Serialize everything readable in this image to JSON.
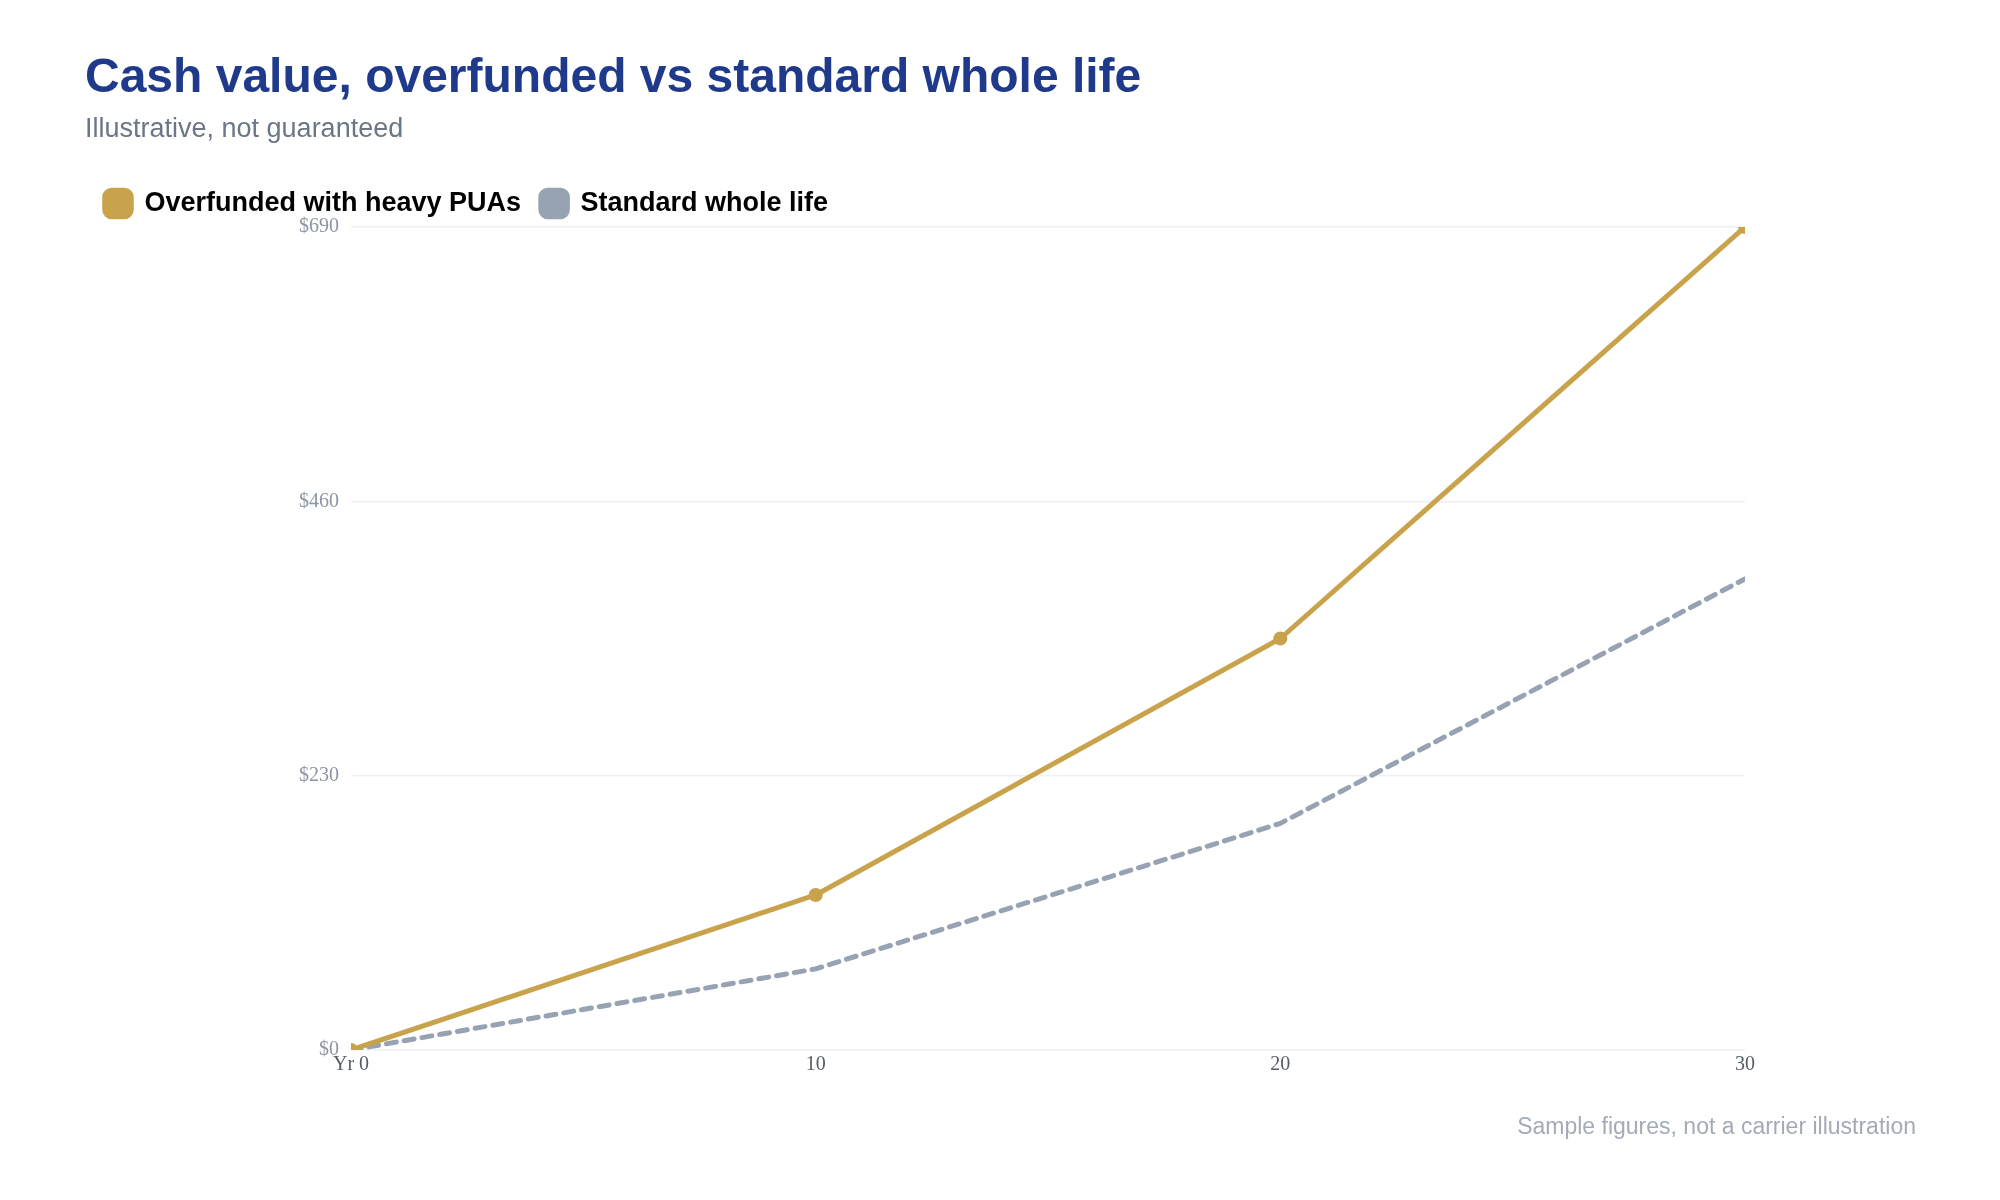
{
  "chart_data": {
    "type": "line",
    "title": "Cash value, overfunded vs standard whole life",
    "subtitle": "Illustrative, not guaranteed",
    "x": [
      0,
      10,
      20,
      30
    ],
    "xlim": [
      0,
      30
    ],
    "xticks": [
      {
        "value": 0,
        "label": "Yr 0"
      },
      10,
      20,
      30
    ],
    "ylim": [
      0,
      690
    ],
    "yticks": [
      {
        "value": 0,
        "label": "$0"
      },
      {
        "value": 230,
        "label": "$230"
      },
      {
        "value": 460,
        "label": "$460"
      },
      {
        "value": 690,
        "label": "$690"
      }
    ],
    "series": [
      {
        "name": "Overfunded with heavy PUAs",
        "color": "#c9a24c",
        "values": [
          0,
          130,
          345,
          690
        ],
        "marker": "circle",
        "line_style": "solid"
      },
      {
        "name": "Standard whole life",
        "color": "#97a2b3",
        "values": [
          0,
          68,
          190,
          395
        ],
        "marker": "none",
        "line_style": "dashed"
      }
    ],
    "grid": "y",
    "legend": "top left",
    "annotations": [
      "Sample figures, not a carrier illustration"
    ]
  }
}
